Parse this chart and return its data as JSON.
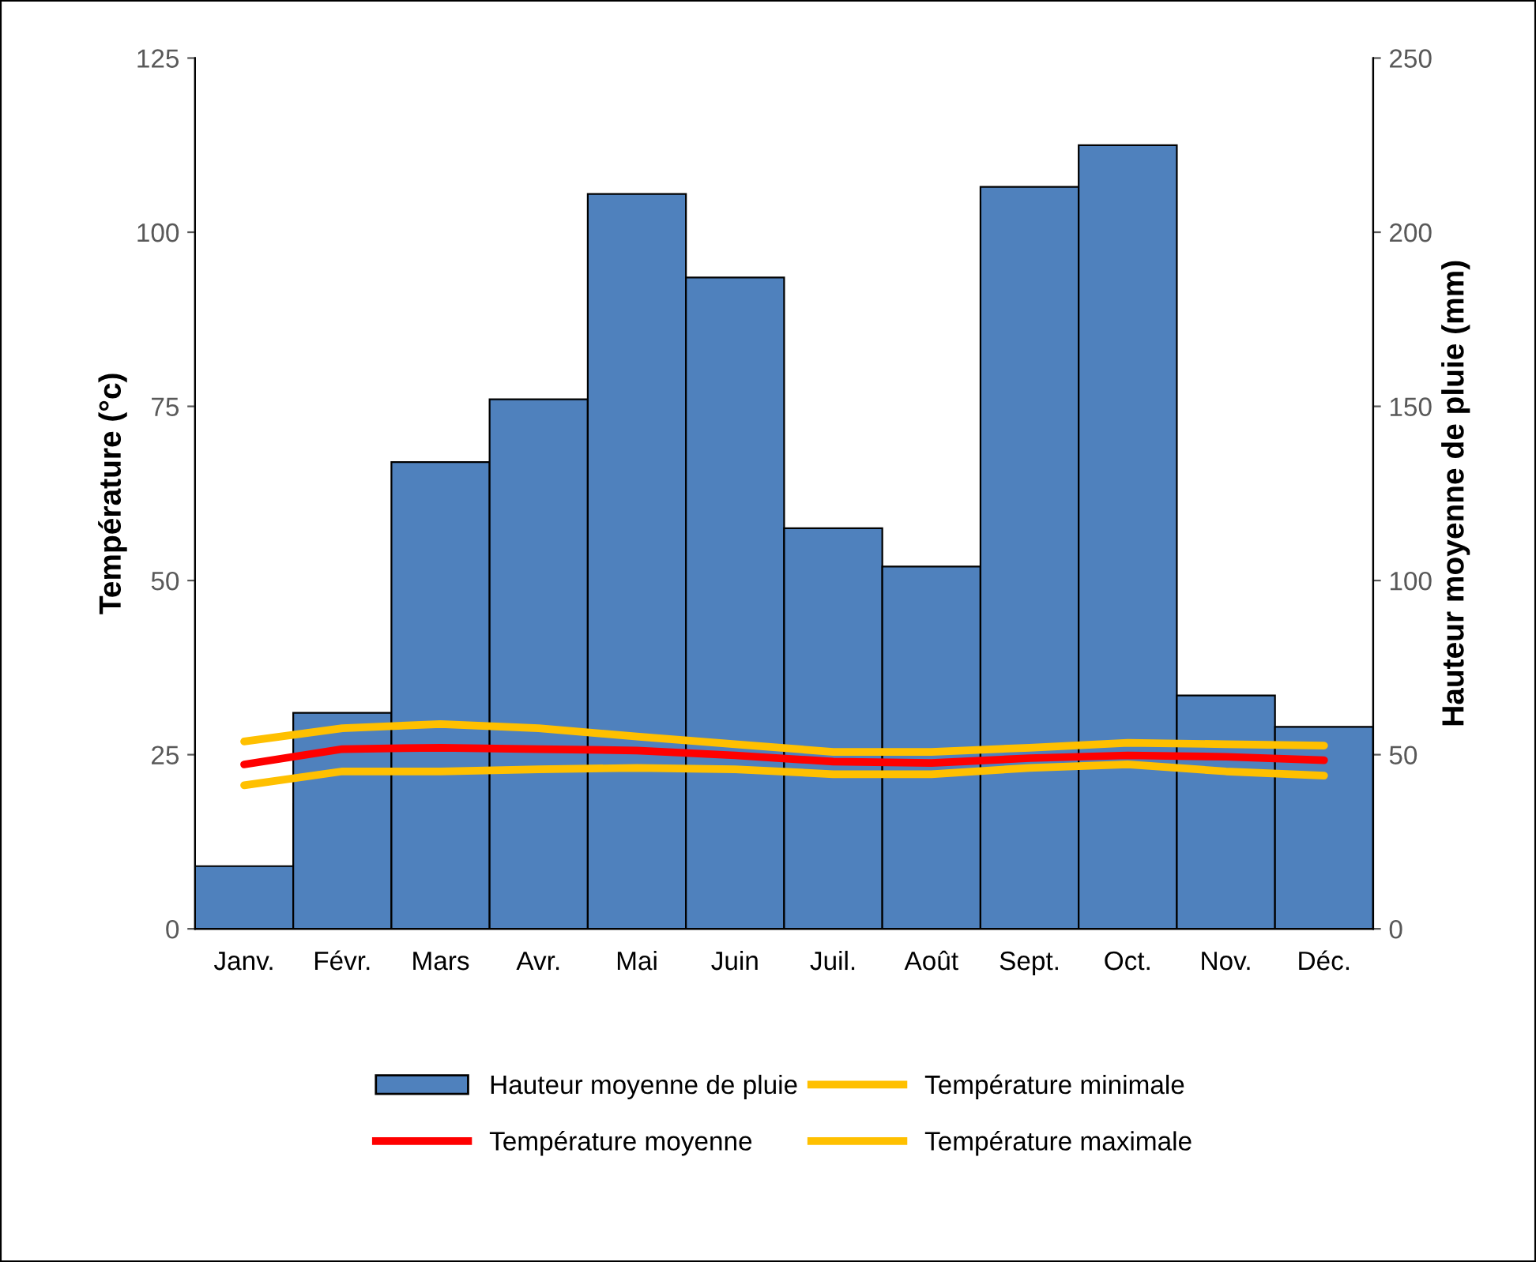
{
  "chart_data": {
    "type": "bar",
    "ylabel": "Température (°c)",
    "y2label": "Hauteur moyenne de pluie (mm)",
    "categories": [
      "Janv.",
      "Févr.",
      "Mars",
      "Avr.",
      "Mai",
      "Juin",
      "Juil.",
      "Août",
      "Sept.",
      "Oct.",
      "Nov.",
      "Déc."
    ],
    "series": [
      {
        "name": "Hauteur moyenne de pluie",
        "color": "#4f81bd",
        "axis": "y2",
        "values": [
          18,
          62,
          134,
          152,
          211,
          187,
          115,
          104,
          213,
          225,
          67,
          58
        ]
      },
      {
        "name": "Température moyenne",
        "color": "#ff0000",
        "type": "line",
        "values": [
          23.6,
          25.8,
          26.0,
          25.8,
          25.6,
          24.9,
          24.0,
          23.8,
          24.5,
          24.9,
          24.7,
          24.2
        ]
      },
      {
        "name": "Température minimale",
        "color": "#ffc000",
        "type": "line",
        "values": [
          20.6,
          22.6,
          22.6,
          22.9,
          23.1,
          22.9,
          22.2,
          22.2,
          23.1,
          23.6,
          22.6,
          22.0
        ]
      },
      {
        "name": "Température maximale",
        "color": "#ffc000",
        "type": "line",
        "values": [
          26.9,
          28.8,
          29.4,
          28.8,
          27.6,
          26.5,
          25.4,
          25.4,
          26.0,
          26.7,
          26.5,
          26.3
        ]
      }
    ],
    "ylim": [
      0,
      125
    ],
    "yticks": [
      0,
      25,
      50,
      75,
      100,
      125
    ],
    "y2lim": [
      0,
      250
    ],
    "y2ticks": [
      0,
      50,
      100,
      150,
      200,
      250
    ],
    "legend": "bottom",
    "grid": false,
    "marker": "none",
    "line_style": "solid"
  }
}
